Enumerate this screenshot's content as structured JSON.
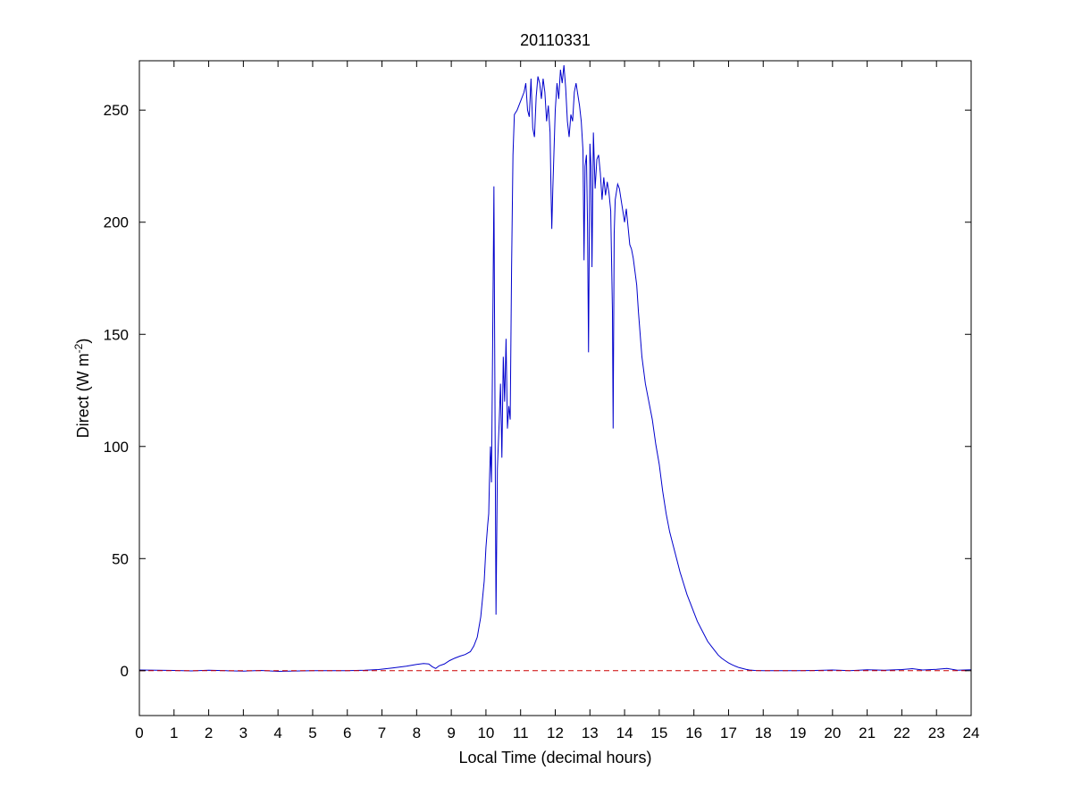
{
  "chart_data": {
    "type": "line",
    "title": "20110331",
    "xlabel": "Local Time (decimal hours)",
    "ylabel_prefix": "Direct (W m",
    "ylabel_exponent": "-2",
    "ylabel_suffix": ")",
    "xlim": [
      0,
      24
    ],
    "ylim": [
      -20,
      272
    ],
    "xticks": [
      0,
      1,
      2,
      3,
      4,
      5,
      6,
      7,
      8,
      9,
      10,
      11,
      12,
      13,
      14,
      15,
      16,
      17,
      18,
      19,
      20,
      21,
      22,
      23,
      24
    ],
    "yticks": [
      0,
      50,
      100,
      150,
      200,
      250
    ],
    "grid": false,
    "series": [
      {
        "color": "#0000cc",
        "points": [
          [
            0.0,
            0.3
          ],
          [
            0.5,
            0.2
          ],
          [
            1.0,
            0.1
          ],
          [
            1.5,
            -0.1
          ],
          [
            2.0,
            0.2
          ],
          [
            2.5,
            0.0
          ],
          [
            3.0,
            -0.2
          ],
          [
            3.5,
            0.1
          ],
          [
            4.0,
            -0.3
          ],
          [
            5.0,
            0.0
          ],
          [
            6.0,
            0.0
          ],
          [
            6.5,
            0.2
          ],
          [
            6.9,
            0.5
          ],
          [
            7.3,
            1.2
          ],
          [
            7.7,
            2.0
          ],
          [
            8.0,
            2.8
          ],
          [
            8.2,
            3.2
          ],
          [
            8.35,
            3.0
          ],
          [
            8.45,
            1.8
          ],
          [
            8.55,
            1.0
          ],
          [
            8.65,
            2.2
          ],
          [
            8.8,
            3.0
          ],
          [
            8.95,
            4.5
          ],
          [
            9.1,
            5.6
          ],
          [
            9.25,
            6.5
          ],
          [
            9.4,
            7.2
          ],
          [
            9.55,
            8.5
          ],
          [
            9.65,
            11.0
          ],
          [
            9.75,
            15.0
          ],
          [
            9.85,
            24.0
          ],
          [
            9.95,
            40.0
          ],
          [
            10.0,
            55.0
          ],
          [
            10.05,
            65.0
          ],
          [
            10.08,
            70.0
          ],
          [
            10.1,
            84.0
          ],
          [
            10.13,
            100.0
          ],
          [
            10.16,
            84.0
          ],
          [
            10.19,
            140.0
          ],
          [
            10.23,
            216.0
          ],
          [
            10.26,
            120.0
          ],
          [
            10.29,
            25.0
          ],
          [
            10.33,
            90.0
          ],
          [
            10.38,
            110.0
          ],
          [
            10.42,
            128.0
          ],
          [
            10.46,
            95.0
          ],
          [
            10.5,
            140.0
          ],
          [
            10.54,
            120.0
          ],
          [
            10.58,
            148.0
          ],
          [
            10.62,
            108.0
          ],
          [
            10.66,
            118.0
          ],
          [
            10.7,
            112.0
          ],
          [
            10.74,
            180.0
          ],
          [
            10.78,
            230.0
          ],
          [
            10.82,
            248.0
          ],
          [
            10.9,
            250.0
          ],
          [
            11.0,
            254.0
          ],
          [
            11.1,
            258.0
          ],
          [
            11.15,
            262.0
          ],
          [
            11.2,
            250.0
          ],
          [
            11.25,
            247.0
          ],
          [
            11.3,
            264.0
          ],
          [
            11.35,
            242.0
          ],
          [
            11.4,
            238.0
          ],
          [
            11.45,
            256.0
          ],
          [
            11.5,
            265.0
          ],
          [
            11.55,
            262.0
          ],
          [
            11.6,
            255.0
          ],
          [
            11.65,
            264.0
          ],
          [
            11.7,
            258.0
          ],
          [
            11.75,
            245.0
          ],
          [
            11.8,
            252.0
          ],
          [
            11.85,
            240.0
          ],
          [
            11.88,
            212.0
          ],
          [
            11.9,
            197.0
          ],
          [
            11.93,
            215.0
          ],
          [
            11.96,
            230.0
          ],
          [
            12.0,
            250.0
          ],
          [
            12.05,
            262.0
          ],
          [
            12.1,
            255.0
          ],
          [
            12.15,
            268.0
          ],
          [
            12.2,
            262.0
          ],
          [
            12.25,
            270.0
          ],
          [
            12.3,
            260.0
          ],
          [
            12.35,
            245.0
          ],
          [
            12.4,
            238.0
          ],
          [
            12.45,
            248.0
          ],
          [
            12.5,
            245.0
          ],
          [
            12.55,
            258.0
          ],
          [
            12.6,
            262.0
          ],
          [
            12.65,
            257.0
          ],
          [
            12.7,
            252.0
          ],
          [
            12.75,
            245.0
          ],
          [
            12.8,
            232.0
          ],
          [
            12.83,
            183.0
          ],
          [
            12.86,
            225.0
          ],
          [
            12.9,
            230.0
          ],
          [
            12.93,
            200.0
          ],
          [
            12.96,
            142.0
          ],
          [
            13.0,
            235.0
          ],
          [
            13.03,
            225.0
          ],
          [
            13.06,
            180.0
          ],
          [
            13.1,
            240.0
          ],
          [
            13.15,
            215.0
          ],
          [
            13.2,
            228.0
          ],
          [
            13.25,
            230.0
          ],
          [
            13.3,
            222.0
          ],
          [
            13.35,
            210.0
          ],
          [
            13.4,
            220.0
          ],
          [
            13.45,
            212.0
          ],
          [
            13.5,
            218.0
          ],
          [
            13.55,
            213.0
          ],
          [
            13.6,
            205.0
          ],
          [
            13.65,
            160.0
          ],
          [
            13.67,
            108.0
          ],
          [
            13.7,
            195.0
          ],
          [
            13.73,
            210.0
          ],
          [
            13.8,
            217.0
          ],
          [
            13.85,
            215.0
          ],
          [
            13.9,
            210.0
          ],
          [
            13.95,
            205.0
          ],
          [
            14.0,
            200.0
          ],
          [
            14.05,
            206.0
          ],
          [
            14.1,
            198.0
          ],
          [
            14.15,
            190.0
          ],
          [
            14.2,
            188.0
          ],
          [
            14.25,
            184.0
          ],
          [
            14.3,
            178.0
          ],
          [
            14.35,
            172.0
          ],
          [
            14.4,
            160.0
          ],
          [
            14.5,
            140.0
          ],
          [
            14.6,
            128.0
          ],
          [
            14.7,
            120.0
          ],
          [
            14.8,
            112.0
          ],
          [
            14.9,
            101.0
          ],
          [
            15.0,
            92.0
          ],
          [
            15.1,
            80.0
          ],
          [
            15.2,
            70.0
          ],
          [
            15.3,
            62.0
          ],
          [
            15.4,
            56.0
          ],
          [
            15.5,
            50.0
          ],
          [
            15.6,
            44.0
          ],
          [
            15.7,
            39.0
          ],
          [
            15.8,
            34.0
          ],
          [
            15.9,
            30.0
          ],
          [
            16.0,
            26.0
          ],
          [
            16.1,
            22.0
          ],
          [
            16.2,
            19.0
          ],
          [
            16.3,
            16.0
          ],
          [
            16.4,
            13.0
          ],
          [
            16.5,
            11.0
          ],
          [
            16.6,
            9.0
          ],
          [
            16.7,
            7.0
          ],
          [
            16.8,
            5.6
          ],
          [
            16.9,
            4.5
          ],
          [
            17.0,
            3.5
          ],
          [
            17.1,
            2.7
          ],
          [
            17.2,
            2.0
          ],
          [
            17.3,
            1.4
          ],
          [
            17.4,
            1.0
          ],
          [
            17.5,
            0.6
          ],
          [
            17.6,
            0.3
          ],
          [
            17.75,
            0.1
          ],
          [
            18.0,
            0.0
          ],
          [
            18.5,
            0.0
          ],
          [
            19.0,
            0.0
          ],
          [
            19.5,
            0.1
          ],
          [
            20.0,
            0.3
          ],
          [
            20.5,
            0.0
          ],
          [
            21.0,
            0.4
          ],
          [
            21.5,
            0.2
          ],
          [
            22.0,
            0.5
          ],
          [
            22.3,
            0.9
          ],
          [
            22.6,
            0.3
          ],
          [
            23.0,
            0.6
          ],
          [
            23.3,
            1.0
          ],
          [
            23.6,
            0.2
          ],
          [
            24.0,
            0.4
          ]
        ]
      },
      {
        "color": "#cc0000",
        "style": "dashed",
        "points": [
          [
            0,
            0
          ],
          [
            24,
            0
          ]
        ]
      }
    ]
  }
}
